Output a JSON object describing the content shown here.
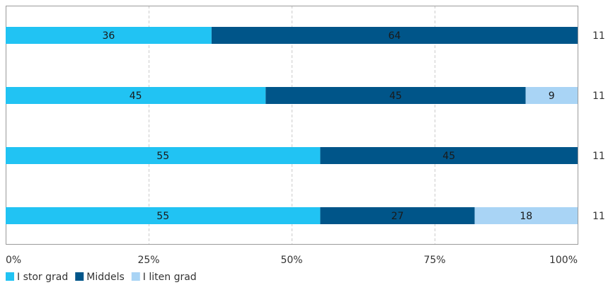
{
  "chart_data": {
    "type": "bar",
    "orientation": "horizontal",
    "stacked": true,
    "categories": [
      "",
      "",
      "",
      ""
    ],
    "series": [
      {
        "name": "I stor grad",
        "color": "#21c3f3",
        "values": [
          36,
          45,
          55,
          55
        ]
      },
      {
        "name": "Middels",
        "color": "#005589",
        "values": [
          64,
          45,
          45,
          27
        ]
      },
      {
        "name": "I liten grad",
        "color": "#a9d4f5",
        "values": [
          0,
          9,
          0,
          18
        ]
      }
    ],
    "row_totals": [
      "11",
      "11",
      "11",
      "11"
    ],
    "xaxis": {
      "ticks": [
        0,
        25,
        50,
        75,
        100
      ],
      "tick_labels": [
        "0%",
        "25%",
        "50%",
        "75%",
        "100%"
      ],
      "range": [
        0,
        100
      ]
    },
    "grid": true,
    "legend": {
      "position": "bottom-left"
    }
  }
}
